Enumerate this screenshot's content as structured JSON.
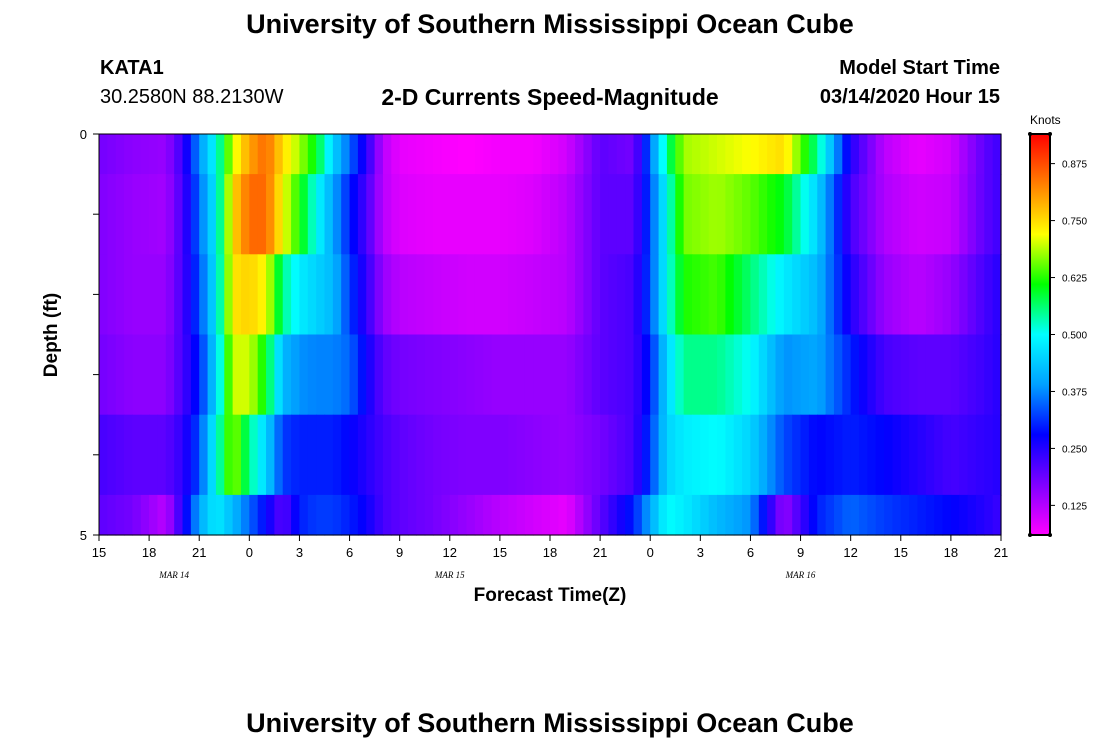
{
  "header": {
    "title_top": "University of Southern Mississippi Ocean Cube",
    "title_bottom": "University of Southern Mississippi Ocean Cube",
    "station_id": "KATA1",
    "station_coords": "30.2580N 88.2130W",
    "plot_title": "2-D Currents Speed-Magnitude",
    "start_label": "Model Start Time",
    "start_value": "03/14/2020 Hour 15"
  },
  "chart_data": {
    "type": "heatmap",
    "title": "2-D Currents Speed-Magnitude",
    "xlabel": "Forecast Time(Z)",
    "ylabel": "Depth (ft)",
    "units": "Knots",
    "x_ticks": [
      "15",
      "18",
      "21",
      "0",
      "3",
      "6",
      "9",
      "12",
      "15",
      "18",
      "21",
      "0",
      "3",
      "6",
      "9",
      "12",
      "15",
      "18",
      "21"
    ],
    "date_labels": [
      {
        "text": "MAR 14",
        "tick_index": 1.5
      },
      {
        "text": "MAR 15",
        "tick_index": 7
      },
      {
        "text": "MAR 16",
        "tick_index": 14
      }
    ],
    "y_tick_labels": [
      {
        "value": 0,
        "label": "0"
      },
      {
        "value": 1,
        "label": ""
      },
      {
        "value": 2,
        "label": ""
      },
      {
        "value": 3,
        "label": ""
      },
      {
        "value": 4,
        "label": ""
      },
      {
        "value": 5,
        "label": "5"
      }
    ],
    "ylim": [
      0,
      5
    ],
    "hours_total": 54,
    "colorbar": {
      "min": 0.06,
      "max": 0.94,
      "ticks": [
        "0.125",
        "0.250",
        "0.375",
        "0.500",
        "0.625",
        "0.750",
        "0.875"
      ],
      "tick_values": [
        0.125,
        0.25,
        0.375,
        0.5,
        0.625,
        0.75,
        0.875
      ],
      "colors": [
        "#ff00ff",
        "#8000ff",
        "#0000ff",
        "#00a0ff",
        "#00ffff",
        "#00ff00",
        "#ffff00",
        "#ff8000",
        "#ff0000"
      ]
    },
    "rows": [
      {
        "depth_range": [
          0.0,
          0.5
        ],
        "hours": [
          0,
          2,
          4,
          5,
          6,
          7,
          8,
          9,
          10,
          11,
          12,
          13,
          14,
          15,
          16,
          17,
          18,
          20,
          22,
          24,
          26,
          28,
          30,
          32,
          33,
          34,
          35,
          37,
          39,
          41,
          43,
          45,
          47,
          49,
          51,
          53,
          54
        ],
        "speeds": [
          0.18,
          0.16,
          0.15,
          0.23,
          0.38,
          0.5,
          0.7,
          0.8,
          0.85,
          0.75,
          0.68,
          0.6,
          0.45,
          0.35,
          0.25,
          0.12,
          0.08,
          0.07,
          0.06,
          0.07,
          0.07,
          0.1,
          0.2,
          0.18,
          0.35,
          0.55,
          0.68,
          0.7,
          0.72,
          0.75,
          0.55,
          0.25,
          0.12,
          0.08,
          0.1,
          0.2,
          0.23
        ]
      },
      {
        "depth_range": [
          0.5,
          1.5
        ],
        "hours": [
          0,
          2,
          4,
          5,
          6,
          7,
          8,
          9,
          10,
          11,
          12,
          13,
          14,
          15,
          16,
          17,
          18,
          20,
          22,
          24,
          26,
          28,
          30,
          32,
          33,
          34,
          35,
          37,
          39,
          41,
          43,
          45,
          47,
          49,
          51,
          53,
          54
        ],
        "speeds": [
          0.17,
          0.15,
          0.14,
          0.22,
          0.35,
          0.48,
          0.75,
          0.85,
          0.85,
          0.72,
          0.62,
          0.5,
          0.4,
          0.3,
          0.22,
          0.12,
          0.09,
          0.08,
          0.08,
          0.08,
          0.09,
          0.12,
          0.2,
          0.2,
          0.33,
          0.5,
          0.66,
          0.68,
          0.65,
          0.6,
          0.45,
          0.22,
          0.13,
          0.1,
          0.11,
          0.2,
          0.23
        ]
      },
      {
        "depth_range": [
          1.5,
          2.5
        ],
        "hours": [
          0,
          2,
          4,
          5,
          6,
          7,
          8,
          9,
          10,
          11,
          12,
          13,
          14,
          15,
          16,
          17,
          18,
          20,
          22,
          24,
          26,
          28,
          30,
          32,
          33,
          34,
          35,
          37,
          39,
          41,
          43,
          45,
          47,
          49,
          51,
          53,
          54
        ],
        "speeds": [
          0.17,
          0.15,
          0.15,
          0.22,
          0.33,
          0.47,
          0.74,
          0.76,
          0.72,
          0.55,
          0.48,
          0.45,
          0.42,
          0.32,
          0.24,
          0.15,
          0.12,
          0.11,
          0.1,
          0.1,
          0.11,
          0.12,
          0.2,
          0.22,
          0.33,
          0.5,
          0.62,
          0.64,
          0.56,
          0.48,
          0.42,
          0.25,
          0.15,
          0.12,
          0.15,
          0.22,
          0.25
        ]
      },
      {
        "depth_range": [
          2.5,
          3.5
        ],
        "hours": [
          0,
          2,
          4,
          5,
          6,
          7,
          8,
          9,
          10,
          11,
          12,
          13,
          14,
          15,
          16,
          17,
          18,
          20,
          22,
          24,
          26,
          28,
          30,
          32,
          33,
          34,
          35,
          37,
          39,
          41,
          43,
          45,
          47,
          49,
          51,
          53,
          54
        ],
        "speeds": [
          0.18,
          0.16,
          0.16,
          0.22,
          0.3,
          0.45,
          0.7,
          0.7,
          0.6,
          0.42,
          0.38,
          0.37,
          0.37,
          0.35,
          0.27,
          0.2,
          0.18,
          0.17,
          0.16,
          0.15,
          0.15,
          0.15,
          0.2,
          0.22,
          0.3,
          0.45,
          0.55,
          0.55,
          0.5,
          0.38,
          0.4,
          0.3,
          0.22,
          0.2,
          0.2,
          0.23,
          0.25
        ]
      },
      {
        "depth_range": [
          3.5,
          4.5
        ],
        "hours": [
          0,
          2,
          4,
          5,
          6,
          7,
          8,
          9,
          10,
          11,
          12,
          13,
          14,
          15,
          16,
          17,
          18,
          20,
          22,
          24,
          26,
          28,
          30,
          32,
          33,
          34,
          35,
          37,
          39,
          41,
          43,
          45,
          47,
          49,
          51,
          53,
          54
        ],
        "speeds": [
          0.22,
          0.2,
          0.2,
          0.24,
          0.33,
          0.5,
          0.68,
          0.55,
          0.45,
          0.32,
          0.3,
          0.3,
          0.3,
          0.28,
          0.25,
          0.22,
          0.2,
          0.18,
          0.17,
          0.17,
          0.16,
          0.15,
          0.18,
          0.22,
          0.32,
          0.45,
          0.48,
          0.5,
          0.45,
          0.33,
          0.28,
          0.3,
          0.28,
          0.25,
          0.22,
          0.24,
          0.25
        ]
      },
      {
        "depth_range": [
          4.5,
          5.0
        ],
        "hours": [
          0,
          2,
          4,
          5,
          6,
          7,
          8,
          9,
          10,
          11,
          12,
          13,
          14,
          15,
          16,
          17,
          18,
          20,
          22,
          24,
          26,
          28,
          30,
          32,
          33,
          34,
          35,
          37,
          39,
          41,
          43,
          45,
          47,
          49,
          51,
          53,
          54
        ],
        "speeds": [
          0.2,
          0.18,
          0.12,
          0.25,
          0.4,
          0.48,
          0.42,
          0.35,
          0.28,
          0.2,
          0.3,
          0.32,
          0.32,
          0.3,
          0.27,
          0.22,
          0.2,
          0.18,
          0.15,
          0.12,
          0.1,
          0.08,
          0.2,
          0.3,
          0.4,
          0.5,
          0.48,
          0.42,
          0.38,
          0.15,
          0.3,
          0.35,
          0.32,
          0.3,
          0.28,
          0.25,
          0.23
        ]
      }
    ]
  }
}
